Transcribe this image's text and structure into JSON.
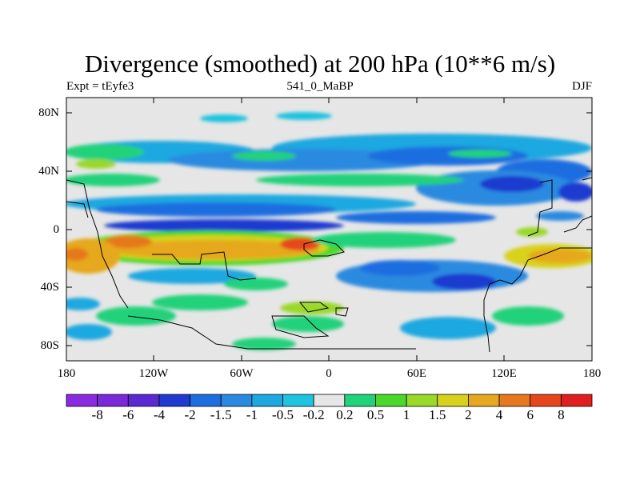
{
  "title": "Divergence (smoothed) at 200 hPa (10**6 m/s)",
  "subtitle_left": "Expt = tEyfe3",
  "subtitle_center": "541_0_MaBP",
  "subtitle_right": "DJF",
  "y_ticks": [
    "80N",
    "40N",
    "0",
    "40S",
    "80S"
  ],
  "x_ticks": [
    "180",
    "120W",
    "60W",
    "0",
    "60E",
    "120E",
    "180"
  ],
  "colorbar": {
    "labels": [
      "-8",
      "-6",
      "-4",
      "-2",
      "-1.5",
      "-1",
      "-0.5",
      "-0.2",
      "0.2",
      "0.5",
      "1",
      "1.5",
      "2",
      "4",
      "6",
      "8"
    ],
    "colors": [
      "#8a2be2",
      "#7a28d8",
      "#5a2ad0",
      "#1e3ad0",
      "#1e6ee0",
      "#2a8ae0",
      "#1fa8e0",
      "#1ec3e0",
      "#e6e6e6",
      "#20d27a",
      "#4cd82a",
      "#9ad82a",
      "#d8d21e",
      "#e6a81e",
      "#e6781e",
      "#e6461e",
      "#e01e1e"
    ]
  },
  "colors": {
    "background": "#e6e6e6"
  }
}
